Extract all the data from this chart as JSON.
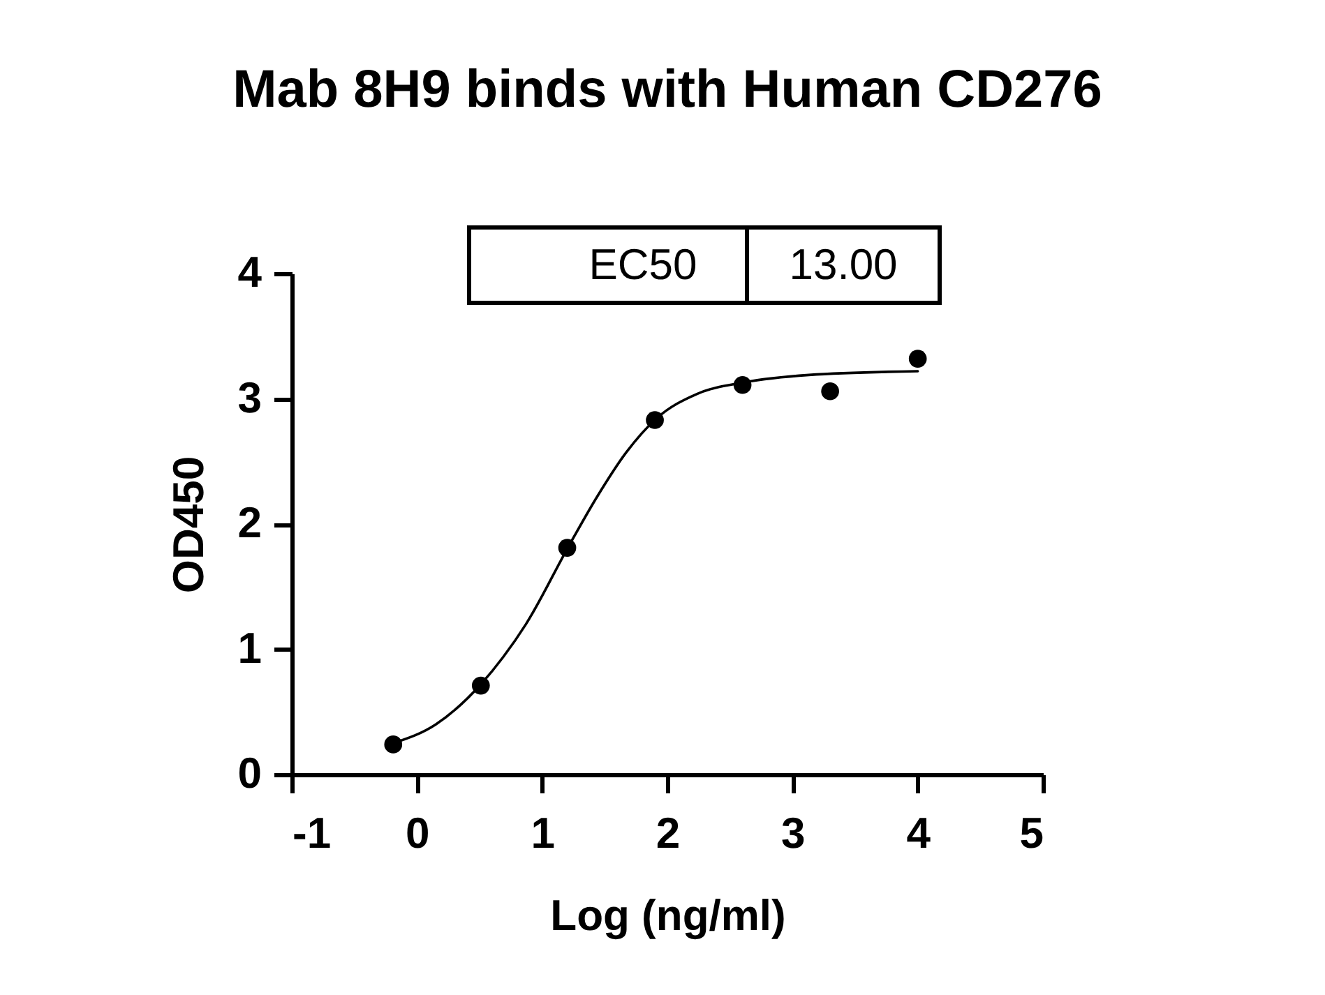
{
  "chart_data": {
    "type": "scatter",
    "title": "Mab 8H9 binds with Human CD276",
    "xlabel": "Log (ng/ml)",
    "ylabel": "OD450",
    "series": [
      {
        "color": "#000000",
        "marker": "circle",
        "x": [
          -0.19,
          0.51,
          1.2,
          1.9,
          2.6,
          3.3,
          4.0
        ],
        "values": [
          0.24,
          0.71,
          1.81,
          2.83,
          3.11,
          3.06,
          3.32
        ]
      },
      {
        "type": "line",
        "color": "#000000",
        "x": [
          -0.19,
          0.15,
          0.51,
          0.69,
          0.87,
          1.21,
          1.44,
          1.67,
          1.91,
          2.24,
          2.61,
          3.13,
          4.0
        ],
        "values": [
          0.25,
          0.4,
          0.72,
          0.94,
          1.2,
          1.82,
          2.22,
          2.57,
          2.84,
          3.04,
          3.13,
          3.19,
          3.22
        ]
      }
    ],
    "xlim": [
      -1,
      5
    ],
    "xticks": [
      -1,
      0,
      1,
      2,
      3,
      4,
      5
    ],
    "ylim": [
      0,
      4
    ],
    "yticks": [
      0,
      1,
      2,
      3,
      4
    ],
    "annotations": [
      "EC50",
      "13.00"
    ]
  }
}
